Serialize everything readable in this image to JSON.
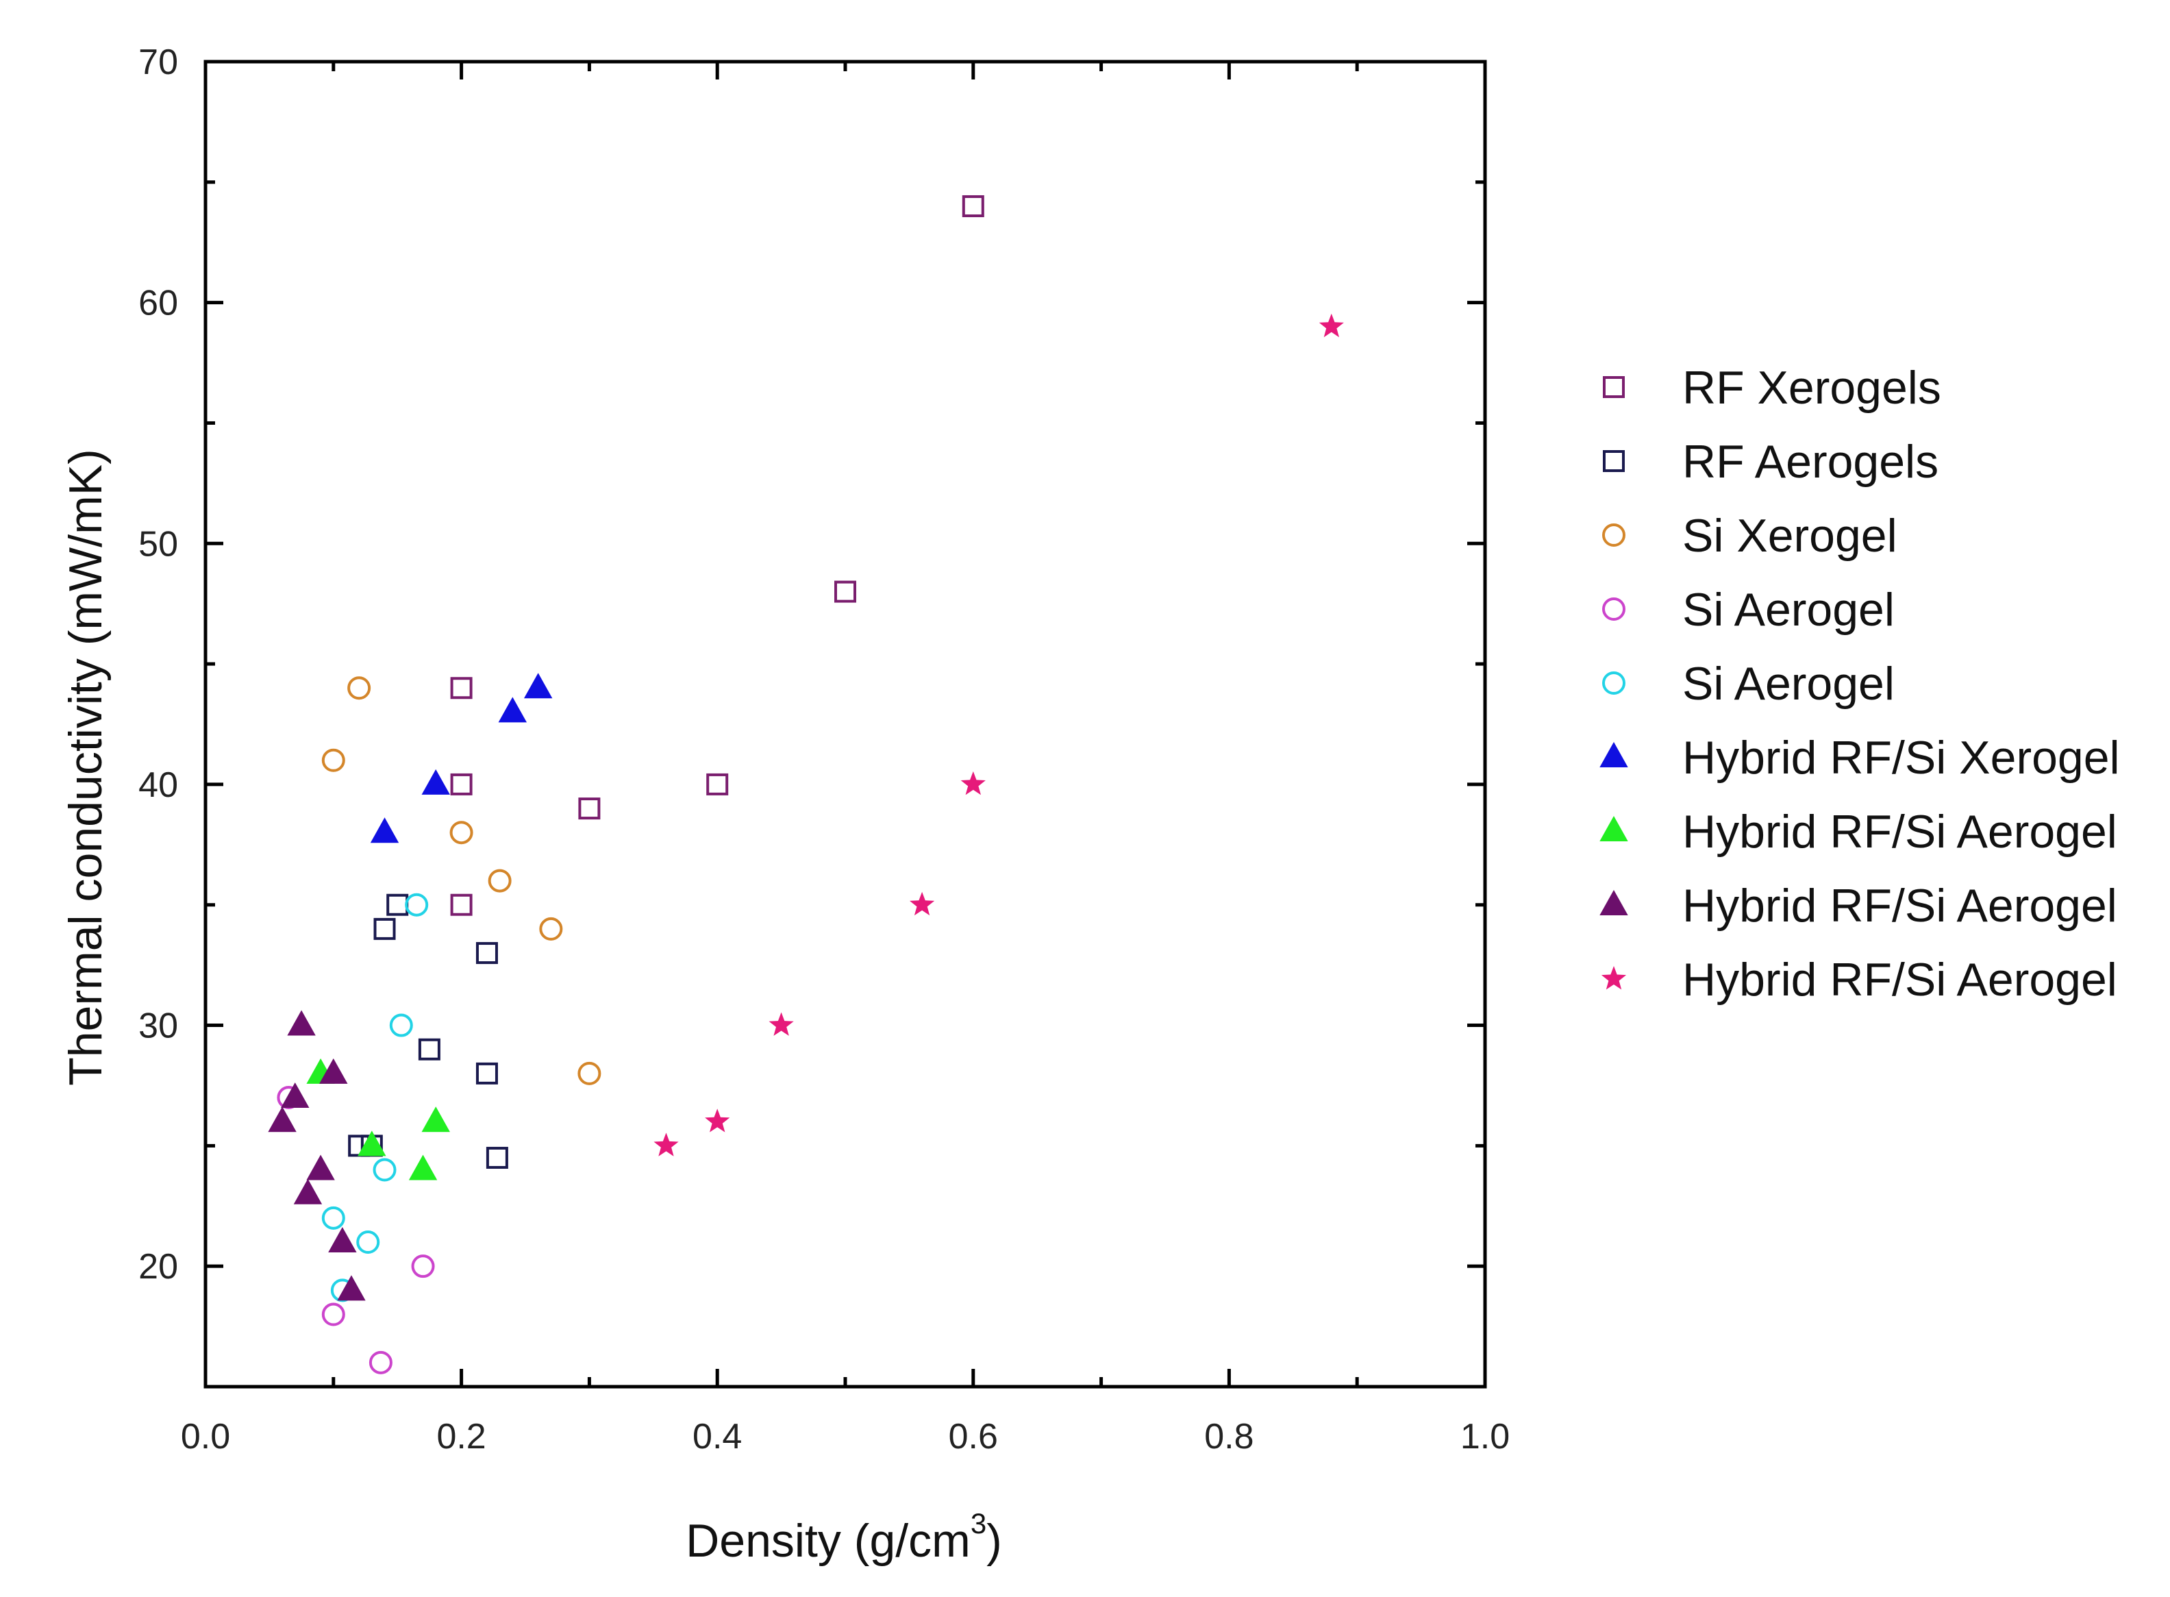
{
  "chart_data": {
    "type": "scatter",
    "title": "",
    "xlabel": "Density (g/cm",
    "xlabel_superscript": "3",
    "xlabel_close": ")",
    "ylabel": "Thermal conductivity (mW/mK)",
    "xlim": [
      0.0,
      1.0
    ],
    "ylim": [
      15,
      70
    ],
    "xticks": [
      0.0,
      0.2,
      0.4,
      0.6,
      0.8,
      1.0
    ],
    "xtick_labels": [
      "0.0",
      "0.2",
      "0.4",
      "0.6",
      "0.8",
      "1.0"
    ],
    "yticks": [
      20,
      30,
      40,
      50,
      60,
      70
    ],
    "ytick_labels": [
      "20",
      "30",
      "40",
      "50",
      "60",
      "70"
    ],
    "grid": false,
    "legend_position": "right",
    "series": [
      {
        "name": "RF Xerogels",
        "marker": "square-open",
        "color": "#7a1e6e",
        "points": [
          [
            0.6,
            64
          ],
          [
            0.5,
            48
          ],
          [
            0.2,
            44
          ],
          [
            0.2,
            40
          ],
          [
            0.3,
            39
          ],
          [
            0.4,
            40
          ],
          [
            0.2,
            35
          ]
        ]
      },
      {
        "name": "RF Aerogels",
        "marker": "square-open",
        "color": "#1a1a4e",
        "points": [
          [
            0.15,
            35
          ],
          [
            0.14,
            34
          ],
          [
            0.22,
            33
          ],
          [
            0.175,
            29
          ],
          [
            0.22,
            28
          ],
          [
            0.12,
            25
          ],
          [
            0.13,
            25
          ],
          [
            0.228,
            24.5
          ]
        ]
      },
      {
        "name": "Si Xerogel",
        "marker": "circle-open",
        "color": "#d4862a",
        "points": [
          [
            0.12,
            44
          ],
          [
            0.1,
            41
          ],
          [
            0.2,
            38
          ],
          [
            0.23,
            36
          ],
          [
            0.27,
            34
          ],
          [
            0.3,
            28
          ]
        ]
      },
      {
        "name": "Si Aerogel",
        "marker": "circle-open",
        "color": "#cc44cc",
        "points": [
          [
            0.065,
            27
          ],
          [
            0.17,
            20
          ],
          [
            0.1,
            18
          ],
          [
            0.137,
            16
          ]
        ]
      },
      {
        "name": "Si Aerogel",
        "marker": "circle-open",
        "color": "#22d3e6",
        "points": [
          [
            0.165,
            35
          ],
          [
            0.153,
            30
          ],
          [
            0.14,
            24
          ],
          [
            0.1,
            22
          ],
          [
            0.127,
            21
          ],
          [
            0.107,
            19
          ]
        ]
      },
      {
        "name": "Hybrid RF/Si Xerogel",
        "marker": "triangle-filled",
        "color": "#1010e0",
        "points": [
          [
            0.26,
            44
          ],
          [
            0.24,
            43
          ],
          [
            0.18,
            40
          ],
          [
            0.14,
            38
          ]
        ]
      },
      {
        "name": "Hybrid RF/Si Aerogel",
        "marker": "triangle-filled",
        "color": "#22ee22",
        "points": [
          [
            0.09,
            28
          ],
          [
            0.18,
            26
          ],
          [
            0.13,
            25
          ],
          [
            0.17,
            24
          ]
        ]
      },
      {
        "name": "Hybrid RF/Si Aerogel",
        "marker": "triangle-filled",
        "color": "#6b0f6b",
        "points": [
          [
            0.075,
            30
          ],
          [
            0.1,
            28
          ],
          [
            0.07,
            27
          ],
          [
            0.06,
            26
          ],
          [
            0.09,
            24
          ],
          [
            0.08,
            23
          ],
          [
            0.107,
            21
          ],
          [
            0.114,
            19
          ]
        ]
      },
      {
        "name": "Hybrid RF/Si Aerogel",
        "marker": "star-filled",
        "color": "#e6197a",
        "points": [
          [
            0.88,
            59
          ],
          [
            0.6,
            40
          ],
          [
            0.56,
            35
          ],
          [
            0.45,
            30
          ],
          [
            0.4,
            26
          ],
          [
            0.36,
            25
          ]
        ]
      }
    ]
  }
}
